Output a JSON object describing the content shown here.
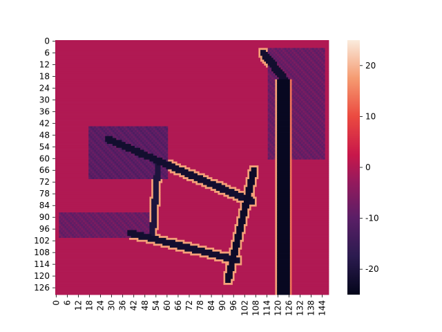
{
  "chart_data": {
    "type": "heatmap",
    "title": "",
    "xlabel": "",
    "ylabel": "",
    "n_rows": 130,
    "n_cols": 148,
    "x_tick_labels": [
      "0",
      "6",
      "12",
      "18",
      "24",
      "30",
      "36",
      "42",
      "48",
      "54",
      "60",
      "66",
      "72",
      "78",
      "84",
      "90",
      "96",
      "102",
      "108",
      "114",
      "120",
      "126",
      "132",
      "138",
      "144"
    ],
    "y_tick_labels": [
      "0",
      "6",
      "12",
      "18",
      "24",
      "30",
      "36",
      "42",
      "48",
      "54",
      "60",
      "66",
      "72",
      "78",
      "84",
      "90",
      "96",
      "102",
      "108",
      "114",
      "120",
      "126"
    ],
    "colorbar": {
      "vmin": -25,
      "vmax": 25,
      "ticks": [
        20,
        10,
        0,
        -10,
        -20
      ],
      "colormap": "rocket"
    },
    "background_value": 0,
    "features": [
      {
        "name": "right vertical corridor",
        "value": -24,
        "rows": [
          20,
          130
        ],
        "cols": [
          120,
          126
        ]
      },
      {
        "name": "diagonal corridor",
        "value": -23,
        "from": [
          66,
          107
        ],
        "to": [
          122,
          93
        ]
      },
      {
        "name": "upper horizontal wall",
        "value": -22,
        "from": [
          50,
          28
        ],
        "to": [
          82,
          106
        ]
      },
      {
        "name": "lower horizontal wall",
        "value": -22,
        "from": [
          98,
          40
        ],
        "to": [
          112,
          98
        ]
      },
      {
        "name": "left vertical wall",
        "value": -20,
        "from": [
          64,
          55
        ],
        "to": [
          100,
          52
        ]
      },
      {
        "name": "upper-left shadow fan",
        "value": -10,
        "from": [
          44,
          18
        ],
        "to": [
          70,
          60
        ]
      },
      {
        "name": "lower-left shadow fan",
        "value": -8,
        "from": [
          88,
          2
        ],
        "to": [
          100,
          50
        ]
      },
      {
        "name": "top-right shadow fan",
        "value": -8,
        "from": [
          4,
          115
        ],
        "to": [
          60,
          145
        ]
      },
      {
        "name": "top corner corridor",
        "value": -22,
        "from": [
          6,
          112
        ],
        "to": [
          20,
          124
        ]
      }
    ]
  }
}
